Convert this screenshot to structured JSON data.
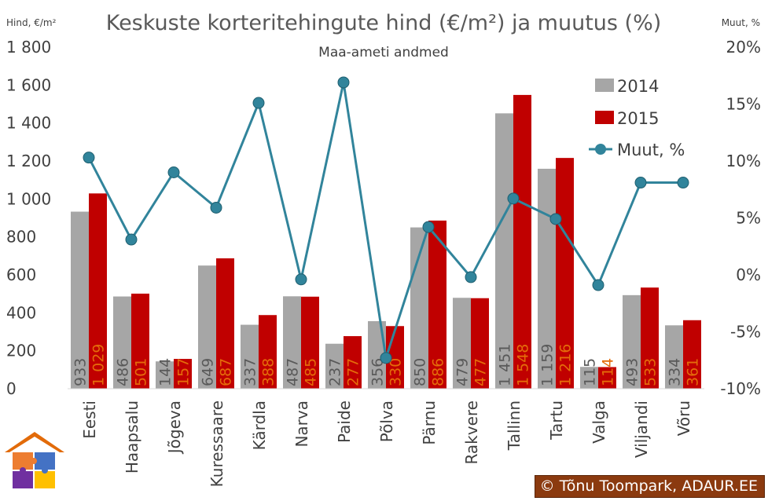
{
  "chart_data": {
    "type": "bar",
    "title": "Keskuste korteritehingute hind (€/m²) ja muutus (%)",
    "subtitle": "Maa-ameti andmed",
    "ylabel": "Hind, €/m²",
    "y2label": "Muut, %",
    "ylim": [
      0,
      1800
    ],
    "y2lim": [
      -10,
      20
    ],
    "yticks": [
      "0",
      "200",
      "400",
      "600",
      "800",
      "1 000",
      "1 200",
      "1 400",
      "1 600",
      "1 800"
    ],
    "y2ticks": [
      "-10%",
      "-5%",
      "0%",
      "5%",
      "10%",
      "15%",
      "20%"
    ],
    "categories": [
      "Eesti",
      "Haapsalu",
      "Jõgeva",
      "Kuressaare",
      "Kärdla",
      "Narva",
      "Paide",
      "Põlva",
      "Pärnu",
      "Rakvere",
      "Tallinn",
      "Tartu",
      "Valga",
      "Viljandi",
      "Võru"
    ],
    "series": [
      {
        "name": "2014",
        "type": "bar",
        "color": "#a6a6a6",
        "values": [
          933,
          486,
          144,
          649,
          337,
          487,
          237,
          356,
          850,
          479,
          1451,
          1159,
          115,
          493,
          334
        ],
        "labels": [
          "933",
          "486",
          "144",
          "649",
          "337",
          "487",
          "237",
          "356",
          "850",
          "479",
          "1 451",
          "1 159",
          "115",
          "493",
          "334"
        ]
      },
      {
        "name": "2015",
        "type": "bar",
        "color": "#c00000",
        "values": [
          1029,
          501,
          157,
          687,
          388,
          485,
          277,
          330,
          886,
          477,
          1548,
          1216,
          114,
          533,
          361
        ],
        "labels": [
          "1 029",
          "501",
          "157",
          "687",
          "388",
          "485",
          "277",
          "330",
          "886",
          "477",
          "1 548",
          "1 216",
          "114",
          "533",
          "361"
        ]
      },
      {
        "name": "Muut, %",
        "type": "line",
        "axis": "right",
        "color": "#31849b",
        "values": [
          10.3,
          3.1,
          9.0,
          5.9,
          15.1,
          -0.4,
          16.9,
          -7.3,
          4.2,
          -0.2,
          6.7,
          4.9,
          -0.9,
          8.1,
          8.1
        ]
      }
    ],
    "legend": "top-right",
    "grid": false
  },
  "footer": {
    "credit": "© Tõnu Toompark, ADAUR.EE"
  },
  "colors": {
    "bar2014": "#a6a6a6",
    "bar2015": "#c00000",
    "line": "#31849b",
    "footer_bg": "#8b3a0f"
  }
}
